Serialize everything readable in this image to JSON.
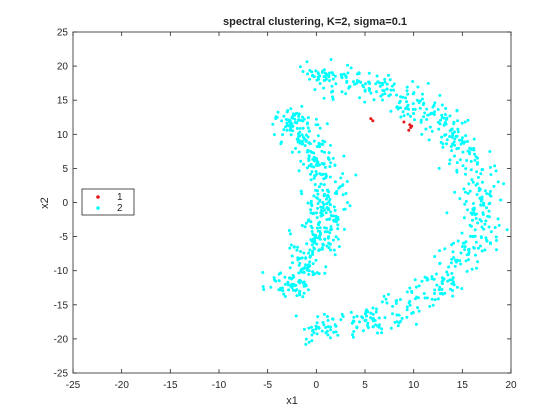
{
  "chart_data": {
    "type": "scatter",
    "title": "spectral clustering, K=2, sigma=0.1",
    "xlabel": "x1",
    "ylabel": "x2",
    "xlim": [
      -25,
      20
    ],
    "ylim": [
      -25,
      25
    ],
    "xticks": [
      -25,
      -20,
      -15,
      -10,
      -5,
      0,
      5,
      10,
      15,
      20
    ],
    "yticks": [
      -25,
      -20,
      -15,
      -10,
      -5,
      0,
      5,
      10,
      15,
      20,
      25
    ],
    "grid": false,
    "legend": {
      "placement": "left"
    },
    "series": [
      {
        "name": "1",
        "color": "#e41a1c",
        "points": [
          [
            5.6,
            12.3
          ],
          [
            5.8,
            12.0
          ],
          [
            9.0,
            11.8
          ],
          [
            9.6,
            11.4
          ],
          [
            9.7,
            11.0
          ],
          [
            9.5,
            10.6
          ],
          [
            9.8,
            11.2
          ]
        ]
      },
      {
        "name": "2",
        "color": "#00ffff",
        "description_points": "two concentric half-moon arcs opening to the left",
        "outer_arc": {
          "center": [
            -1.5,
            0
          ],
          "radius": 18.5,
          "t_range_deg": [
            -89,
            89
          ],
          "count": 600,
          "noise": 1.1
        },
        "inner_arc": {
          "center": [
            -20.5,
            0
          ],
          "radius": 21.5,
          "t_range_deg": [
            -38,
            38
          ],
          "count": 450,
          "noise": 1.0
        }
      }
    ]
  }
}
